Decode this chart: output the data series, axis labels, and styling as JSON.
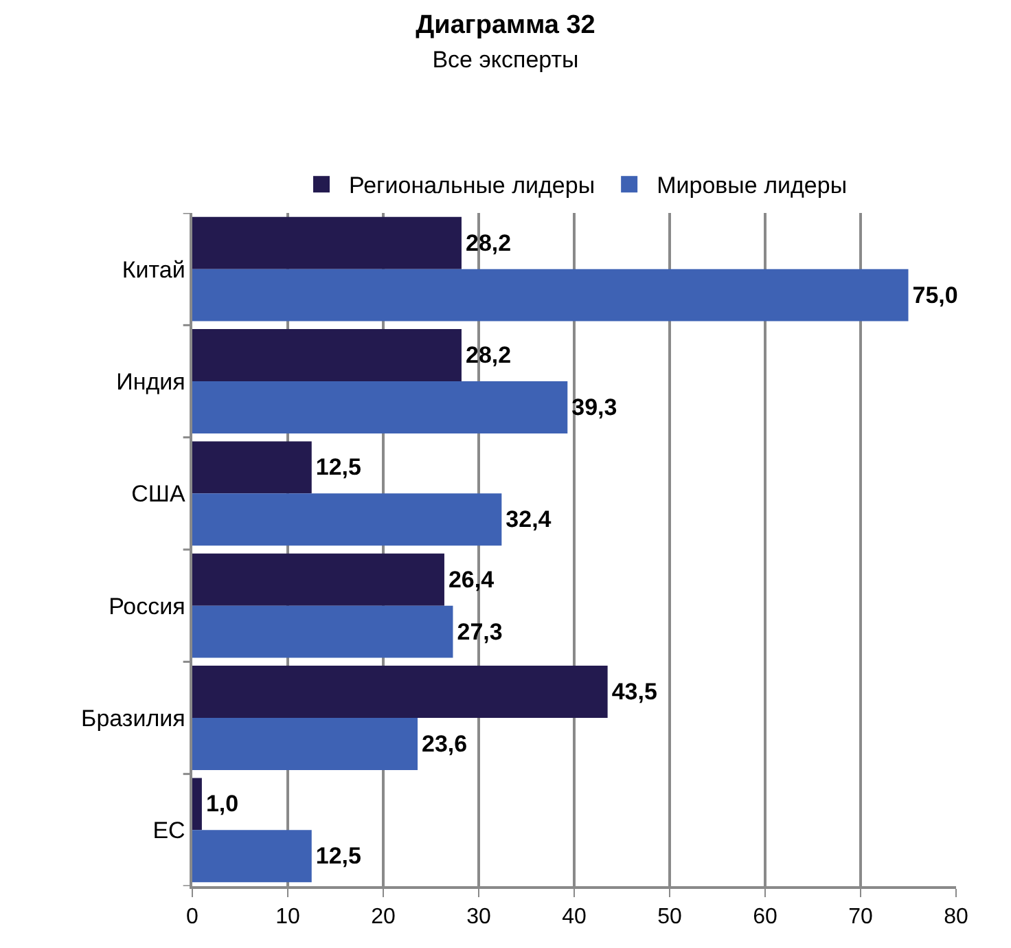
{
  "chart_data": {
    "type": "bar",
    "orientation": "horizontal",
    "title": "Диаграмма 32",
    "subtitle": "Все эксперты",
    "categories": [
      "Китай",
      "Индия",
      "США",
      "Россия",
      "Бразилия",
      "ЕС"
    ],
    "series": [
      {
        "name": "Региональные лидеры",
        "color": "#231a4f",
        "values": [
          28.2,
          28.2,
          12.5,
          26.4,
          43.5,
          1.0
        ],
        "value_labels": [
          "28,2",
          "28,2",
          "12,5",
          "26,4",
          "43,5",
          "1,0"
        ]
      },
      {
        "name": "Мировые лидеры",
        "color": "#3e62b4",
        "values": [
          75.0,
          39.3,
          32.4,
          27.3,
          23.6,
          12.5
        ],
        "value_labels": [
          "75,0",
          "39,3",
          "32,4",
          "27,3",
          "23,6",
          "12,5"
        ]
      }
    ],
    "xlim": [
      0,
      80
    ],
    "xticks": [
      0,
      10,
      20,
      30,
      40,
      50,
      60,
      70,
      80
    ],
    "grid": "x",
    "legend": "top"
  }
}
